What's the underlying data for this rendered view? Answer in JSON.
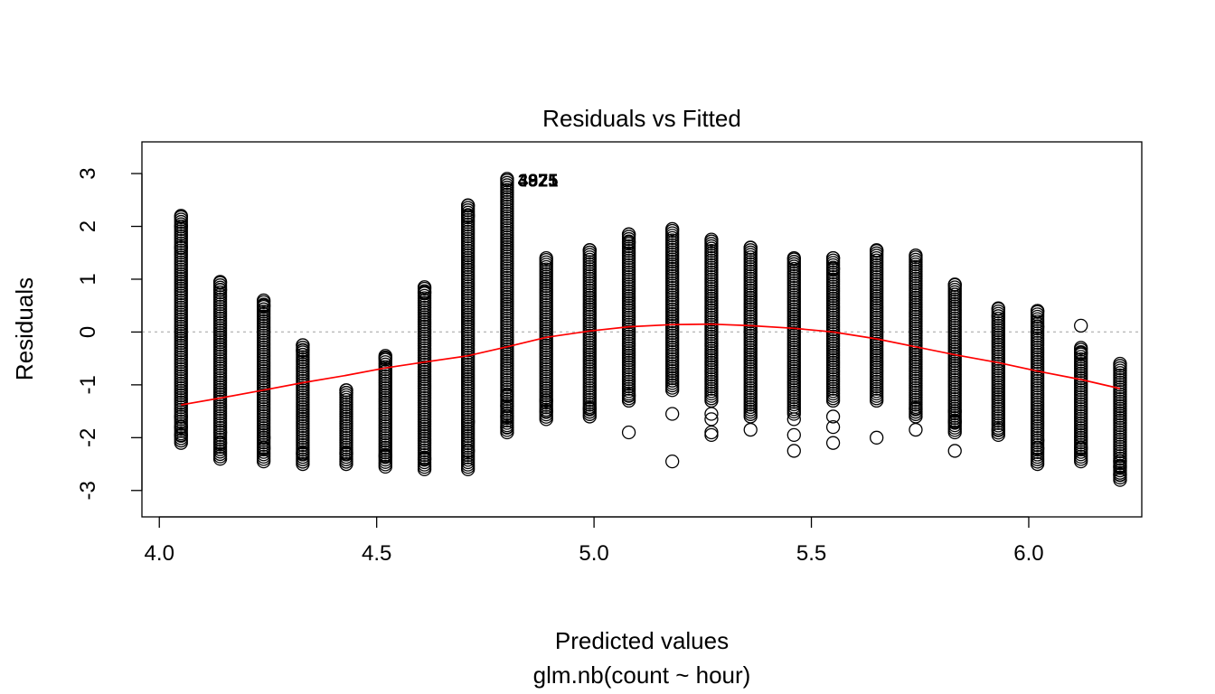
{
  "chart_data": {
    "type": "scatter",
    "title": "Residuals vs Fitted",
    "xlabel": "Predicted values",
    "subtitle": "glm.nb(count ~ hour)",
    "ylabel": "Residuals",
    "xlim": [
      3.96,
      6.26
    ],
    "ylim": [
      -3.5,
      3.6
    ],
    "x_ticks": [
      4.0,
      4.5,
      5.0,
      5.5,
      6.0
    ],
    "x_tick_labels": [
      "4.0",
      "4.5",
      "5.0",
      "5.5",
      "6.0"
    ],
    "y_ticks": [
      -3,
      -2,
      -1,
      0,
      1,
      2,
      3
    ],
    "y_tick_labels": [
      "-3",
      "-2",
      "-1",
      "0",
      "1",
      "2",
      "3"
    ],
    "reference_line": {
      "y": 0,
      "style": "dotted",
      "color": "#bdbdbd"
    },
    "groups": [
      {
        "x": 4.05,
        "low": -2.1,
        "high": 2.2,
        "outliers": [
          -1.95,
          -1.8,
          -1.6,
          1.6,
          2.0
        ]
      },
      {
        "x": 4.14,
        "low": -2.4,
        "high": 0.95,
        "outliers": [
          -2.1,
          -1.9,
          0.8
        ]
      },
      {
        "x": 4.24,
        "low": -2.45,
        "high": 0.6,
        "outliers": [
          -2.2,
          -2.0,
          0.5
        ]
      },
      {
        "x": 4.33,
        "low": -2.5,
        "high": -0.25,
        "outliers": [
          -2.3,
          -0.35
        ]
      },
      {
        "x": 4.43,
        "low": -2.5,
        "high": -1.1,
        "outliers": [
          -2.3,
          -1.15
        ]
      },
      {
        "x": 4.52,
        "low": -2.55,
        "high": -0.45,
        "outliers": [
          -2.35,
          -0.5
        ]
      },
      {
        "x": 4.61,
        "low": -2.6,
        "high": 0.85,
        "outliers": [
          -2.4,
          0.75
        ]
      },
      {
        "x": 4.71,
        "low": -2.6,
        "high": 2.4,
        "outliers": [
          -2.25,
          -1.7,
          2.2
        ]
      },
      {
        "x": 4.8,
        "low": -1.9,
        "high": 2.9,
        "outliers": [
          -1.8,
          -1.6,
          -1.4,
          -1.2
        ]
      },
      {
        "x": 4.89,
        "low": -1.65,
        "high": 1.4,
        "outliers": [
          -1.5,
          -1.3
        ]
      },
      {
        "x": 4.99,
        "low": -1.6,
        "high": 1.55,
        "outliers": [
          -1.45
        ]
      },
      {
        "x": 5.08,
        "low": -1.3,
        "high": 1.85,
        "outliers": [
          -1.9,
          -1.2,
          1.7
        ]
      },
      {
        "x": 5.18,
        "low": -1.1,
        "high": 1.95,
        "outliers": [
          -2.45,
          -1.55
        ]
      },
      {
        "x": 5.27,
        "low": -1.3,
        "high": 1.75,
        "outliers": [
          -1.95,
          -1.9,
          -1.65,
          -1.55
        ]
      },
      {
        "x": 5.36,
        "low": -1.6,
        "high": 1.6,
        "outliers": [
          -1.85
        ]
      },
      {
        "x": 5.46,
        "low": -1.55,
        "high": 1.4,
        "outliers": [
          -2.25,
          -1.95,
          -1.65
        ]
      },
      {
        "x": 5.55,
        "low": -1.3,
        "high": 1.4,
        "outliers": [
          -2.1,
          -1.8,
          -1.6,
          1.2
        ]
      },
      {
        "x": 5.65,
        "low": -1.3,
        "high": 1.55,
        "outliers": [
          -2.0
        ]
      },
      {
        "x": 5.74,
        "low": -1.6,
        "high": 1.45,
        "outliers": [
          -1.85,
          -1.45
        ]
      },
      {
        "x": 5.83,
        "low": -1.9,
        "high": 0.9,
        "outliers": [
          -2.25,
          -1.7,
          -1.5
        ]
      },
      {
        "x": 5.93,
        "low": -1.95,
        "high": 0.45,
        "outliers": [
          -1.85,
          0.3
        ]
      },
      {
        "x": 6.02,
        "low": -2.5,
        "high": 0.4,
        "outliers": [
          -2.2,
          -2.05,
          0.1,
          0.4
        ]
      },
      {
        "x": 6.12,
        "low": -2.45,
        "high": -0.3,
        "outliers": [
          -2.2,
          0.12,
          -0.4
        ]
      },
      {
        "x": 6.21,
        "low": -2.8,
        "high": -0.6,
        "outliers": [
          -2.7,
          -2.55,
          -2.45
        ]
      }
    ],
    "smoother": {
      "color": "#ff0000",
      "x": [
        4.05,
        4.14,
        4.24,
        4.33,
        4.43,
        4.52,
        4.61,
        4.71,
        4.8,
        4.89,
        4.99,
        5.08,
        5.18,
        5.27,
        5.36,
        5.46,
        5.55,
        5.65,
        5.74,
        5.83,
        5.93,
        6.02,
        6.12,
        6.21
      ],
      "y": [
        -1.38,
        -1.25,
        -1.1,
        -0.96,
        -0.82,
        -0.68,
        -0.57,
        -0.45,
        -0.28,
        -0.1,
        0.02,
        0.1,
        0.14,
        0.15,
        0.12,
        0.07,
        0.0,
        -0.13,
        -0.28,
        -0.43,
        -0.58,
        -0.74,
        -0.9,
        -1.07
      ]
    },
    "point_labels": [
      {
        "text": "3925",
        "x": 4.8,
        "y": 2.87
      },
      {
        "text": "4875",
        "x": 4.8,
        "y": 2.87
      },
      {
        "text": "4921",
        "x": 4.8,
        "y": 2.87
      }
    ]
  }
}
